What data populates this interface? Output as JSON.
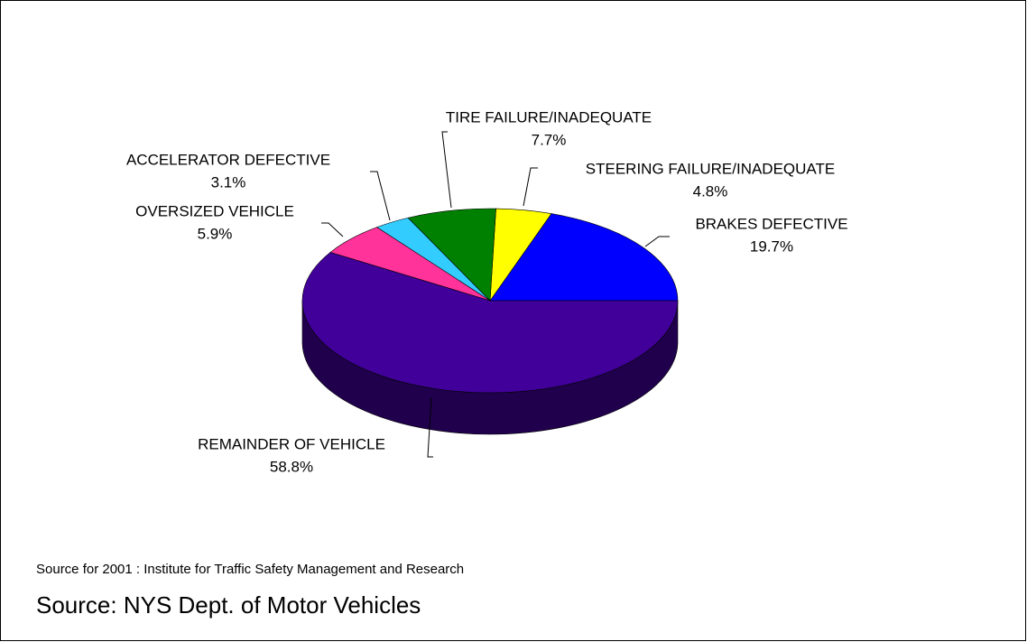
{
  "chart_data": {
    "type": "pie",
    "categories": [
      "BRAKES DEFECTIVE",
      "STEERING FAILURE/INADEQUATE",
      "TIRE FAILURE/INADEQUATE",
      "ACCELERATOR DEFECTIVE",
      "OVERSIZED VEHICLE",
      "REMAINDER OF VEHICLE"
    ],
    "values": [
      19.7,
      4.8,
      7.7,
      3.1,
      5.9,
      58.8
    ],
    "value_labels": [
      "19.7%",
      "4.8%",
      "7.7%",
      "3.1%",
      "5.9%",
      "58.8%"
    ],
    "colors": [
      "#0000ff",
      "#ffff00",
      "#008000",
      "#33ccff",
      "#ff3399",
      "#400099"
    ],
    "source_note": "Source for 2001 : Institute for Traffic Safety Management and Research",
    "source": "Source: NYS Dept. of Motor Vehicles"
  }
}
